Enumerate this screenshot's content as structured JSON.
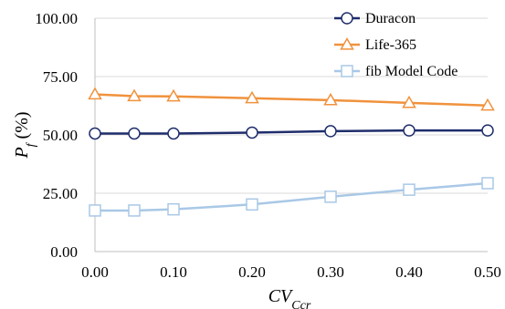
{
  "chart_data": {
    "type": "line",
    "title": "",
    "xlabel": "CV",
    "xlabel_sub": "Ccr",
    "ylabel": "P",
    "ylabel_sub": "f",
    "ylabel_suffix": " (%)",
    "xlim": [
      0.0,
      0.5
    ],
    "ylim": [
      0.0,
      100.0
    ],
    "x_ticks": [
      "0.00",
      "0.10",
      "0.20",
      "0.30",
      "0.40",
      "0.50"
    ],
    "y_ticks": [
      "0.00",
      "25.00",
      "50.00",
      "75.00",
      "100.00"
    ],
    "grid": "horizontal",
    "legend_position": "top-right",
    "x": [
      0.0,
      0.05,
      0.1,
      0.2,
      0.3,
      0.4,
      0.5
    ],
    "series": [
      {
        "name": "Duracon",
        "color": "#1f2d6b",
        "marker": "circle",
        "values": [
          50.6,
          50.6,
          50.6,
          51.0,
          51.6,
          51.9,
          51.9
        ]
      },
      {
        "name": "Life-365",
        "color": "#f0923c",
        "marker": "triangle",
        "values": [
          67.4,
          66.6,
          66.5,
          65.7,
          64.9,
          63.7,
          62.6
        ]
      },
      {
        "name": "fib Model Code",
        "color": "#a9c8e6",
        "marker": "square",
        "values": [
          17.6,
          17.6,
          18.1,
          20.2,
          23.5,
          26.5,
          29.3
        ]
      }
    ]
  }
}
